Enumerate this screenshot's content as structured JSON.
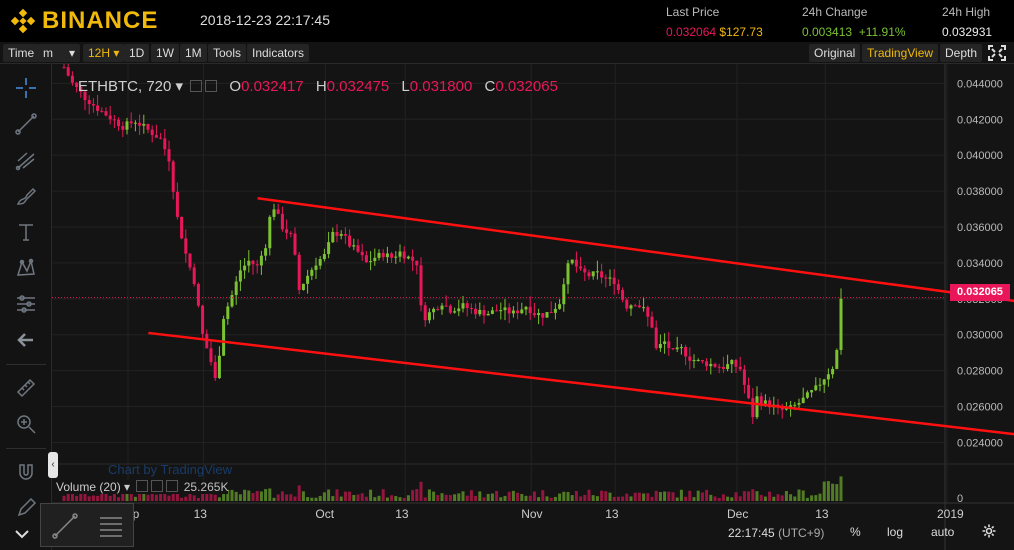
{
  "header": {
    "brand": "BINANCE",
    "datetime": "2018-12-23 22:17:45",
    "last_price_label": "Last Price",
    "last_price_btc": "0.032064",
    "last_price_usd": "$127.73",
    "change_label": "24h Change",
    "change_abs": "0.003413",
    "change_pct": "+11.91%",
    "high_label": "24h High",
    "high_value": "0.032931"
  },
  "toolbar": {
    "time_label": "Time",
    "m_label": "m",
    "dropdown_arrow": "▾",
    "interval_12h": "12H ▾",
    "interval_1d": "1D",
    "interval_1w": "1W",
    "interval_1m": "1M",
    "tools": "Tools",
    "indicators": "Indicators",
    "original": "Original",
    "tradingview": "TradingView",
    "depth": "Depth"
  },
  "legend": {
    "symbol": "ETHBTC, 720 ▾",
    "o_label": "O",
    "o_value": "0.032417",
    "h_label": "H",
    "h_value": "0.032475",
    "l_label": "L",
    "l_value": "0.031800",
    "c_label": "C",
    "c_value": "0.032065"
  },
  "volume_label": "Volume (20) ▾",
  "volume_value": "25.265K",
  "watermark": "Chart by TradingView",
  "current_price_tag": "0.032065",
  "bottom": {
    "time": "22:17:45",
    "tz": "(UTC+9)",
    "percent": "%",
    "log": "log",
    "auto": "auto"
  },
  "colors": {
    "brand": "#f0b90b",
    "up": "#7ac231",
    "down": "#e9175a",
    "trendline": "#ff1010",
    "background": "#141414"
  },
  "icons": [
    "binance-logo-icon",
    "crosshair-icon",
    "trend-line-icon",
    "pitchfork-icon",
    "brush-icon",
    "text-icon",
    "pattern-icon",
    "prediction-icon",
    "arrow-left-icon",
    "ruler-icon",
    "zoom-icon",
    "magnet-icon",
    "pencil-lock-icon",
    "fullscreen-icon",
    "gear-icon"
  ],
  "chart_data": {
    "type": "candlestick",
    "y_ticks": [
      "0.044000",
      "0.042000",
      "0.040000",
      "0.038000",
      "0.036000",
      "0.034000",
      "0.032000",
      "0.030000",
      "0.028000",
      "0.026000",
      "0.024000"
    ],
    "x_ticks": [
      "Sep",
      "13",
      "Oct",
      "13",
      "Nov",
      "13",
      "Dec",
      "13",
      "2019"
    ],
    "ylim": [
      0.0228,
      0.0448
    ],
    "volume_tick": "0",
    "path_points": [
      [
        0,
        0.0449
      ],
      [
        2,
        0.044
      ],
      [
        5,
        0.0432
      ],
      [
        8,
        0.0426
      ],
      [
        11,
        0.0421
      ],
      [
        14,
        0.0416
      ],
      [
        17,
        0.0419
      ],
      [
        20,
        0.0414
      ],
      [
        23,
        0.0409
      ],
      [
        25,
        0.0398
      ],
      [
        27,
        0.0365
      ],
      [
        29,
        0.0345
      ],
      [
        31,
        0.033
      ],
      [
        33,
        0.03
      ],
      [
        35,
        0.0285
      ],
      [
        36,
        0.0275
      ],
      [
        37,
        0.029
      ],
      [
        38,
        0.031
      ],
      [
        40,
        0.0322
      ],
      [
        42,
        0.0336
      ],
      [
        44,
        0.0341
      ],
      [
        46,
        0.0338
      ],
      [
        48,
        0.035
      ],
      [
        49,
        0.0365
      ],
      [
        50,
        0.0371
      ],
      [
        52,
        0.036
      ],
      [
        54,
        0.0355
      ],
      [
        55,
        0.0343
      ],
      [
        56,
        0.0325
      ],
      [
        58,
        0.0333
      ],
      [
        60,
        0.034
      ],
      [
        62,
        0.0344
      ],
      [
        64,
        0.0356
      ],
      [
        66,
        0.0357
      ],
      [
        68,
        0.035
      ],
      [
        70,
        0.0346
      ],
      [
        72,
        0.034
      ],
      [
        74,
        0.0343
      ],
      [
        76,
        0.0345
      ],
      [
        78,
        0.0343
      ],
      [
        80,
        0.0346
      ],
      [
        82,
        0.0343
      ],
      [
        84,
        0.034
      ],
      [
        85,
        0.0315
      ],
      [
        86,
        0.031
      ],
      [
        88,
        0.0314
      ],
      [
        90,
        0.0318
      ],
      [
        92,
        0.0314
      ],
      [
        95,
        0.0316
      ],
      [
        98,
        0.0313
      ],
      [
        101,
        0.0312
      ],
      [
        104,
        0.0314
      ],
      [
        107,
        0.0312
      ],
      [
        110,
        0.0316
      ],
      [
        112,
        0.0312
      ],
      [
        114,
        0.0311
      ],
      [
        116,
        0.0313
      ],
      [
        118,
        0.0318
      ],
      [
        119,
        0.033
      ],
      [
        120,
        0.0338
      ],
      [
        121,
        0.0341
      ],
      [
        123,
        0.0335
      ],
      [
        125,
        0.0333
      ],
      [
        127,
        0.0334
      ],
      [
        129,
        0.0331
      ],
      [
        131,
        0.033
      ],
      [
        133,
        0.032
      ],
      [
        134,
        0.0316
      ],
      [
        136,
        0.0318
      ],
      [
        138,
        0.0314
      ],
      [
        140,
        0.0305
      ],
      [
        141,
        0.0292
      ],
      [
        143,
        0.0296
      ],
      [
        145,
        0.029
      ],
      [
        147,
        0.0292
      ],
      [
        149,
        0.0287
      ],
      [
        151,
        0.0285
      ],
      [
        153,
        0.0284
      ],
      [
        155,
        0.0283
      ],
      [
        157,
        0.0282
      ],
      [
        159,
        0.0284
      ],
      [
        161,
        0.0281
      ],
      [
        162,
        0.0272
      ],
      [
        164,
        0.0255
      ],
      [
        165,
        0.0265
      ],
      [
        167,
        0.0262
      ],
      [
        169,
        0.026
      ],
      [
        171,
        0.0258
      ],
      [
        173,
        0.0259
      ],
      [
        175,
        0.0262
      ],
      [
        177,
        0.0266
      ],
      [
        179,
        0.027
      ],
      [
        181,
        0.0276
      ],
      [
        183,
        0.0282
      ],
      [
        184,
        0.0291
      ],
      [
        185,
        0.0321
      ]
    ],
    "trendlines": [
      {
        "from": [
          0.0376,
          "2018-09-13"
        ],
        "to": [
          0.0303,
          "2019-01-06"
        ]
      },
      {
        "from": [
          0.0301,
          "2018-08-31"
        ],
        "to": [
          0.0231,
          "2019-01-06"
        ]
      }
    ]
  }
}
